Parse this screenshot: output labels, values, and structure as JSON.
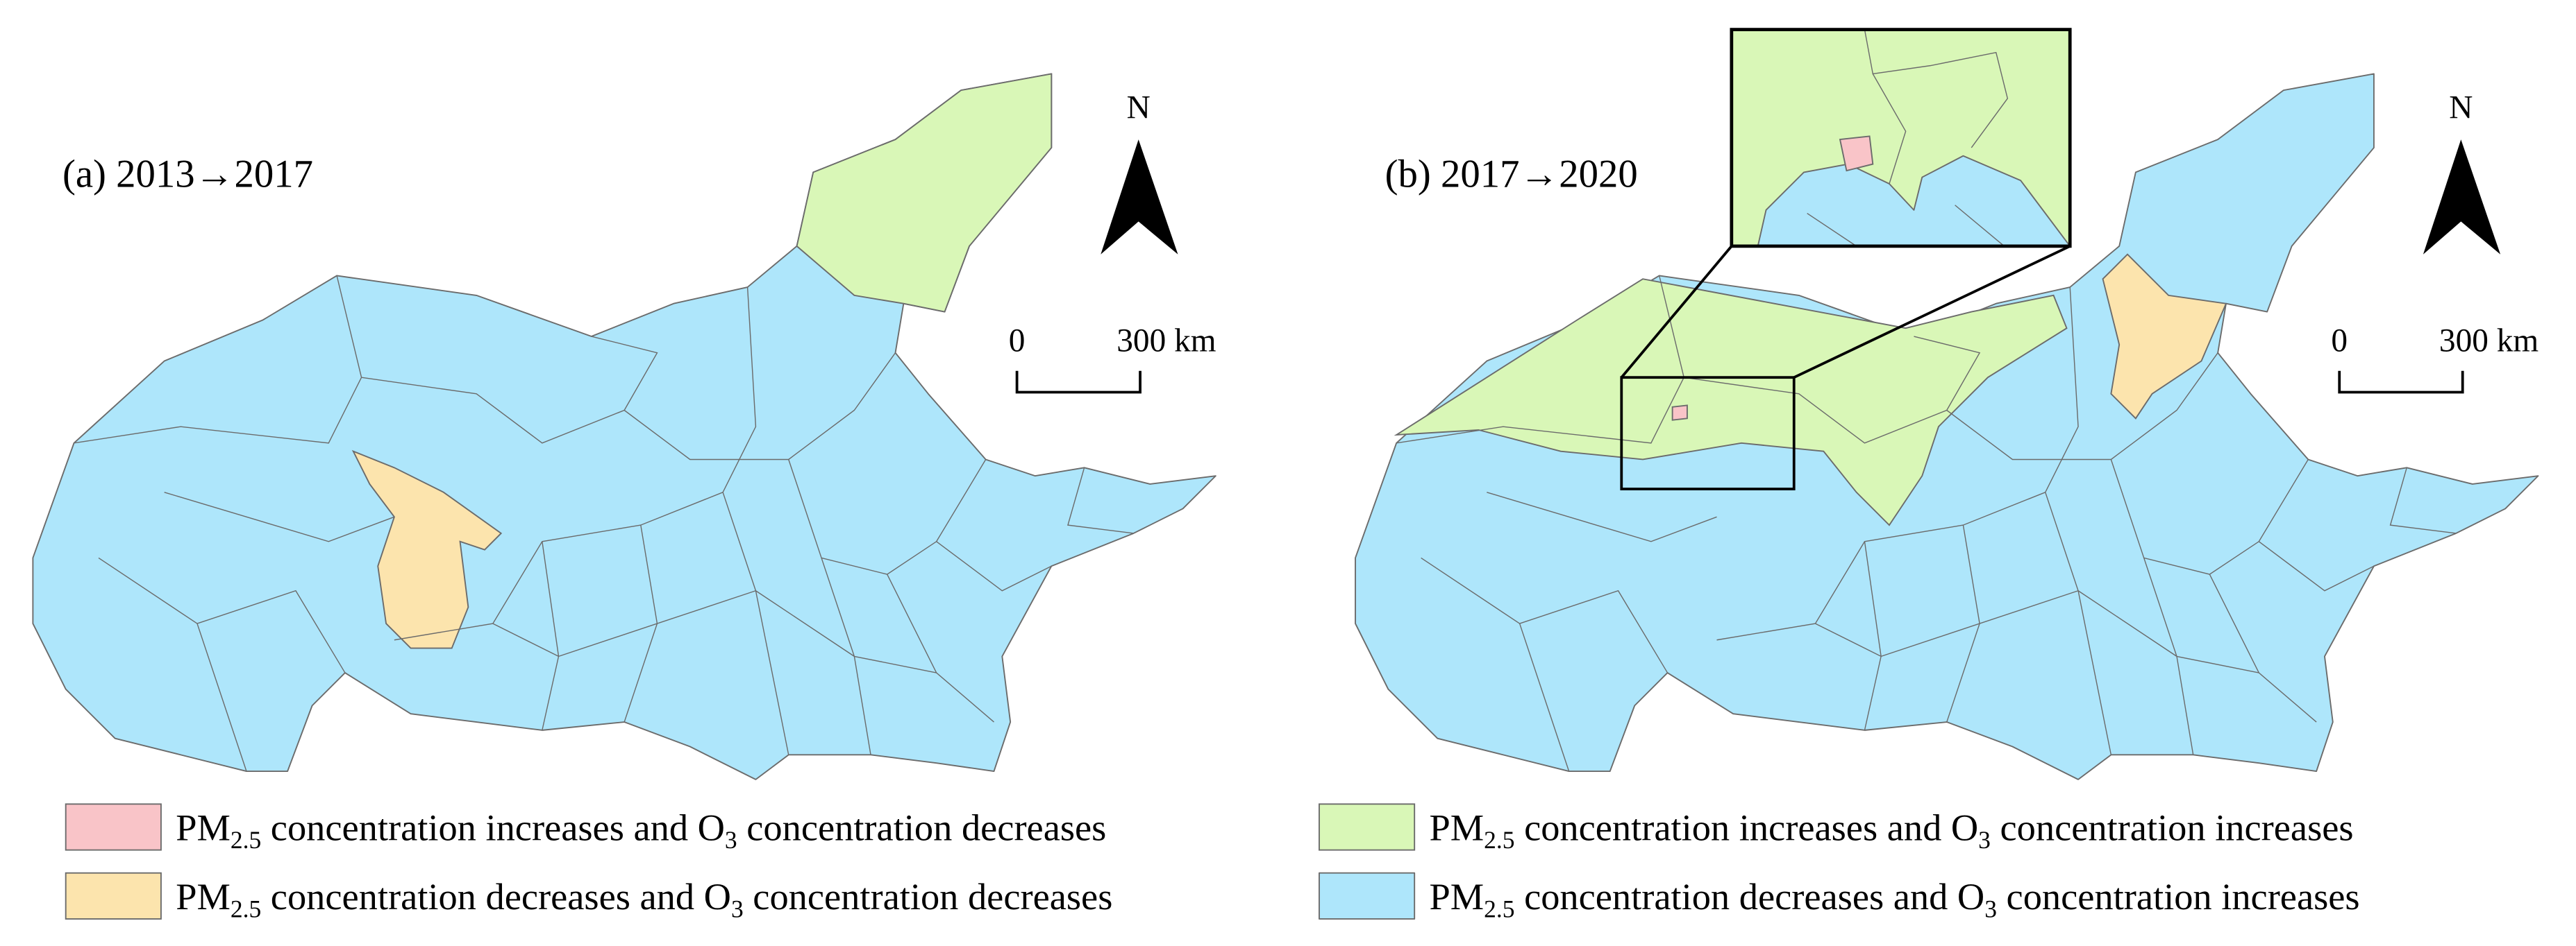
{
  "panels": [
    {
      "label": "(a) 2013→2017",
      "north": "N",
      "scale": {
        "start": "0",
        "end": "300 km"
      }
    },
    {
      "label": "(b) 2017→2020",
      "north": "N",
      "scale": {
        "start": "0",
        "end": "300 km"
      }
    }
  ],
  "legend": [
    {
      "parts": [
        "PM",
        "2.5",
        " concentration increases and O",
        "3",
        " concentration decreases"
      ]
    },
    {
      "parts": [
        "PM",
        "2.5",
        " concentration increases and O",
        "3",
        " concentration increases"
      ]
    },
    {
      "parts": [
        "PM",
        "2.5",
        " concentration decreases and O",
        "3",
        " concentration decreases"
      ]
    },
    {
      "parts": [
        "PM",
        "2.5",
        " concentration decreases and O",
        "3",
        " concentration increases"
      ]
    }
  ]
}
